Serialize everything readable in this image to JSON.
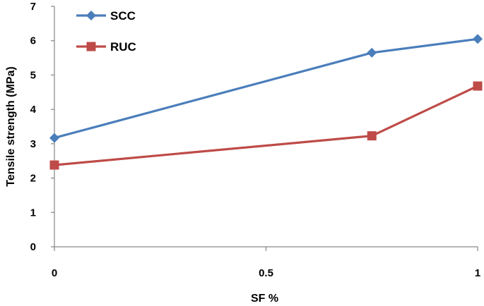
{
  "chart_data": {
    "type": "line",
    "xlabel": "SF %",
    "ylabel": "Tensile strength (MPa)",
    "xlim": [
      0,
      1
    ],
    "ylim": [
      0,
      7
    ],
    "x_ticks": [
      0,
      0.5,
      1
    ],
    "x_tick_labels": [
      "0",
      "0.5",
      "1"
    ],
    "y_ticks": [
      0,
      1,
      2,
      3,
      4,
      5,
      6,
      7
    ],
    "y_tick_labels": [
      "0",
      "1",
      "2",
      "3",
      "4",
      "5",
      "6",
      "7"
    ],
    "grid": false,
    "legend_position": "top-left",
    "series": [
      {
        "name": "SCC",
        "color": "#4A7EBB",
        "marker": "diamond",
        "x": [
          0,
          0.75,
          1
        ],
        "y": [
          3.17,
          5.65,
          6.05
        ]
      },
      {
        "name": "RUC",
        "color": "#BE4B48",
        "marker": "square",
        "x": [
          0,
          0.75,
          1
        ],
        "y": [
          2.38,
          3.23,
          4.68
        ]
      }
    ]
  }
}
